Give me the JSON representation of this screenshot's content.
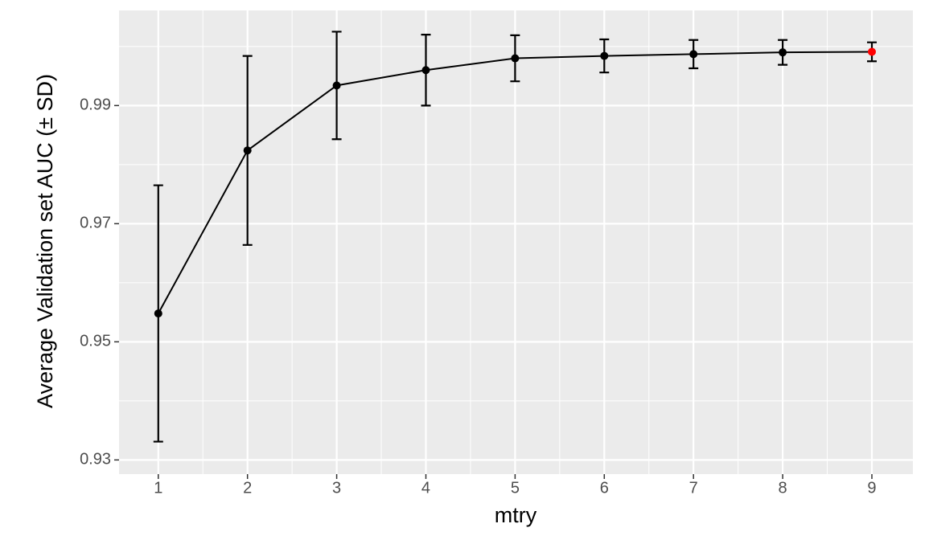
{
  "chart_data": {
    "type": "line",
    "x_label": "mtry",
    "y_label": "Average Validation set AUC (± SD)",
    "x": [
      1,
      2,
      3,
      4,
      5,
      6,
      7,
      8,
      9
    ],
    "values": [
      0.9548,
      0.9824,
      0.9934,
      0.996,
      0.998,
      0.9984,
      0.9987,
      0.999,
      0.9991
    ],
    "sd": [
      0.0217,
      0.016,
      0.0091,
      0.006,
      0.0039,
      0.0028,
      0.0024,
      0.0021,
      0.0016
    ],
    "color": "#000000",
    "point_colors": [
      "#000000",
      "#000000",
      "#000000",
      "#000000",
      "#000000",
      "#000000",
      "#000000",
      "#000000",
      "#ff0000"
    ],
    "xlim": [
      0.56,
      9.46
    ],
    "ylim": [
      0.9276,
      1.0061
    ],
    "xticks": [
      1,
      2,
      3,
      4,
      5,
      6,
      7,
      8,
      9
    ],
    "yticks": [
      0.93,
      0.95,
      0.97,
      0.99
    ],
    "xminor": [
      1.5,
      2.5,
      3.5,
      4.5,
      5.5,
      6.5,
      7.5,
      8.5
    ],
    "yminor": [
      0.94,
      0.96,
      0.98,
      1.0
    ],
    "grid": true
  }
}
